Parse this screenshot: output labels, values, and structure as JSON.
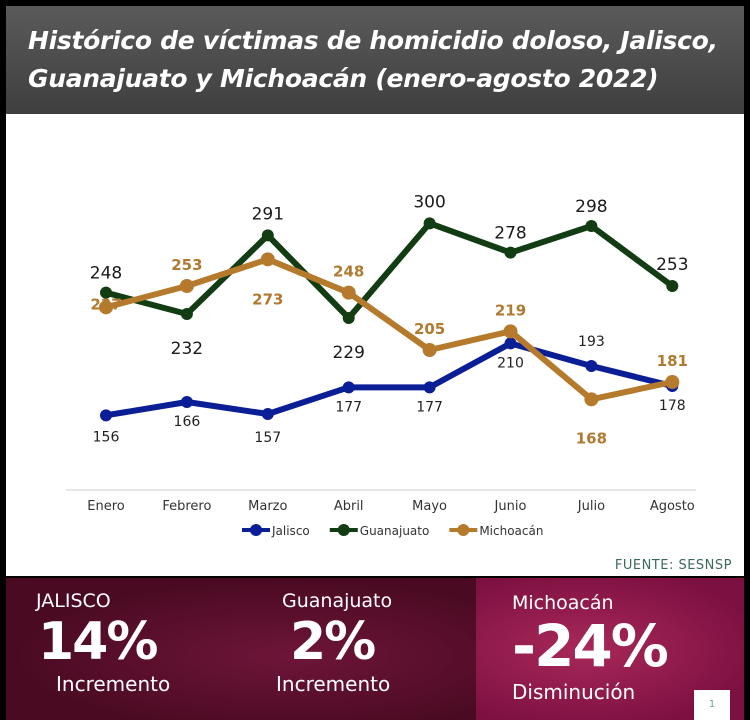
{
  "header": {
    "title_line1": "Histórico de víctimas de homicidio doloso, Jalisco,",
    "title_line2": "Guanajuato y Michoacán (enero-agosto 2022)"
  },
  "source": "FUENTE: SESNSP",
  "chart_data": {
    "type": "line",
    "categories": [
      "Enero",
      "Febrero",
      "Marzo",
      "Abril",
      "Mayo",
      "Junio",
      "Julio",
      "Agosto"
    ],
    "series": [
      {
        "name": "Jalisco",
        "color": "#0a1e96",
        "values": [
          156,
          166,
          157,
          177,
          177,
          210,
          193,
          178
        ]
      },
      {
        "name": "Guanajuato",
        "color": "#123d12",
        "values": [
          248,
          232,
          291,
          229,
          300,
          278,
          298,
          253
        ]
      },
      {
        "name": "Michoacán",
        "color": "#b57a2c",
        "values": [
          237,
          253,
          273,
          248,
          205,
          219,
          168,
          181
        ]
      }
    ],
    "ylim": [
      100,
      370
    ],
    "grid": false,
    "legend": "bottom"
  },
  "kpis": [
    {
      "name": "JALISCO",
      "value": "14%",
      "desc": "Incremento"
    },
    {
      "name": "Guanajuato",
      "value": "2%",
      "desc": "Incremento"
    },
    {
      "name": "Michoacán",
      "value": "-24%",
      "desc": "Disminución"
    }
  ],
  "page_number": "1"
}
